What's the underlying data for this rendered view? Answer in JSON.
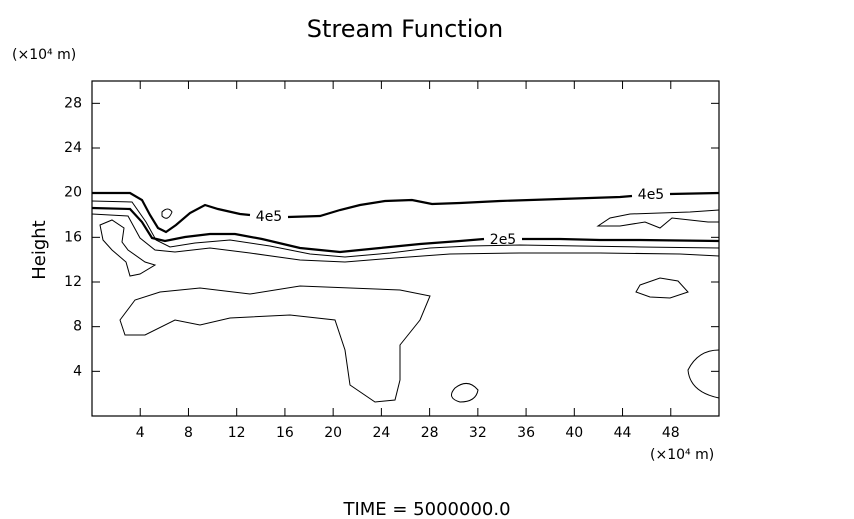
{
  "chart_data": {
    "type": "contour",
    "title": "Stream Function",
    "y_label": "Height",
    "y_unit": "(×10⁴ m)",
    "x_unit": "(×10⁴ m)",
    "footer": "TIME = 5000000.0",
    "xlim": [
      0,
      52
    ],
    "xticks": [
      4,
      8,
      12,
      16,
      20,
      24,
      28,
      32,
      36,
      40,
      44,
      48
    ],
    "ylim": [
      0,
      30
    ],
    "yticks": [
      4,
      8,
      12,
      16,
      20,
      24,
      28
    ],
    "contour_labels": [
      {
        "value": 400000,
        "label": "4e5"
      },
      {
        "value": 400000,
        "label": "4e5"
      },
      {
        "value": 200000,
        "label": "2e5"
      }
    ],
    "color": "#000000"
  }
}
